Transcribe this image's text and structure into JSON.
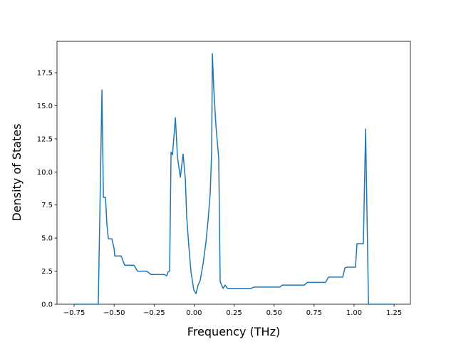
{
  "chart_data": {
    "type": "line",
    "xlabel": "Frequency (THz)",
    "ylabel": "Density of States",
    "color": "#1f77b4",
    "x": [
      -0.75,
      -0.599,
      -0.576,
      -0.567,
      -0.554,
      -0.545,
      -0.536,
      -0.514,
      -0.5,
      -0.496,
      -0.456,
      -0.434,
      -0.376,
      -0.354,
      -0.296,
      -0.269,
      -0.189,
      -0.171,
      -0.162,
      -0.153,
      -0.144,
      -0.135,
      -0.117,
      -0.104,
      -0.086,
      -0.069,
      -0.055,
      -0.046,
      -0.033,
      -0.02,
      -0.002,
      0.012,
      0.025,
      0.038,
      0.056,
      0.074,
      0.087,
      0.101,
      0.11,
      0.114,
      0.123,
      0.136,
      0.154,
      0.163,
      0.181,
      0.194,
      0.208,
      0.355,
      0.377,
      0.537,
      0.551,
      0.689,
      0.707,
      0.822,
      0.84,
      0.929,
      0.943,
      0.956,
      1.009,
      1.018,
      1.058,
      1.072,
      1.09,
      1.25
    ],
    "values": [
      0,
      0,
      16.2,
      8.08,
      8.08,
      6.0,
      4.95,
      4.95,
      4.2,
      3.65,
      3.65,
      2.95,
      2.95,
      2.5,
      2.5,
      2.25,
      2.25,
      2.15,
      2.45,
      2.5,
      11.5,
      11.3,
      14.1,
      11.1,
      9.6,
      11.35,
      9.5,
      6.55,
      4.4,
      2.5,
      1.08,
      0.8,
      1.45,
      1.8,
      3.05,
      4.7,
      6.3,
      8.45,
      11.7,
      18.95,
      16.26,
      13.57,
      11.0,
      1.7,
      1.2,
      1.45,
      1.2,
      1.2,
      1.3,
      1.3,
      1.45,
      1.45,
      1.65,
      1.65,
      2.05,
      2.05,
      2.75,
      2.8,
      2.8,
      4.58,
      4.58,
      13.25,
      0,
      0
    ],
    "xlim": [
      -0.857,
      1.352
    ],
    "ylim": [
      0,
      19.87
    ],
    "xticks": [
      {
        "value": -0.75,
        "label": "−0.75"
      },
      {
        "value": -0.5,
        "label": "−0.50"
      },
      {
        "value": -0.25,
        "label": "−0.25"
      },
      {
        "value": 0,
        "label": "0.00"
      },
      {
        "value": 0.25,
        "label": "0.25"
      },
      {
        "value": 0.5,
        "label": "0.50"
      },
      {
        "value": 0.75,
        "label": "0.75"
      },
      {
        "value": 1.0,
        "label": "1.00"
      },
      {
        "value": 1.25,
        "label": "1.25"
      }
    ],
    "yticks": [
      {
        "value": 0,
        "label": "0.0"
      },
      {
        "value": 2.5,
        "label": "2.5"
      },
      {
        "value": 5,
        "label": "5.0"
      },
      {
        "value": 7.5,
        "label": "7.5"
      },
      {
        "value": 10,
        "label": "10.0"
      },
      {
        "value": 12.5,
        "label": "12.5"
      },
      {
        "value": 15,
        "label": "15.0"
      },
      {
        "value": 17.5,
        "label": "17.5"
      }
    ],
    "grid": false
  }
}
